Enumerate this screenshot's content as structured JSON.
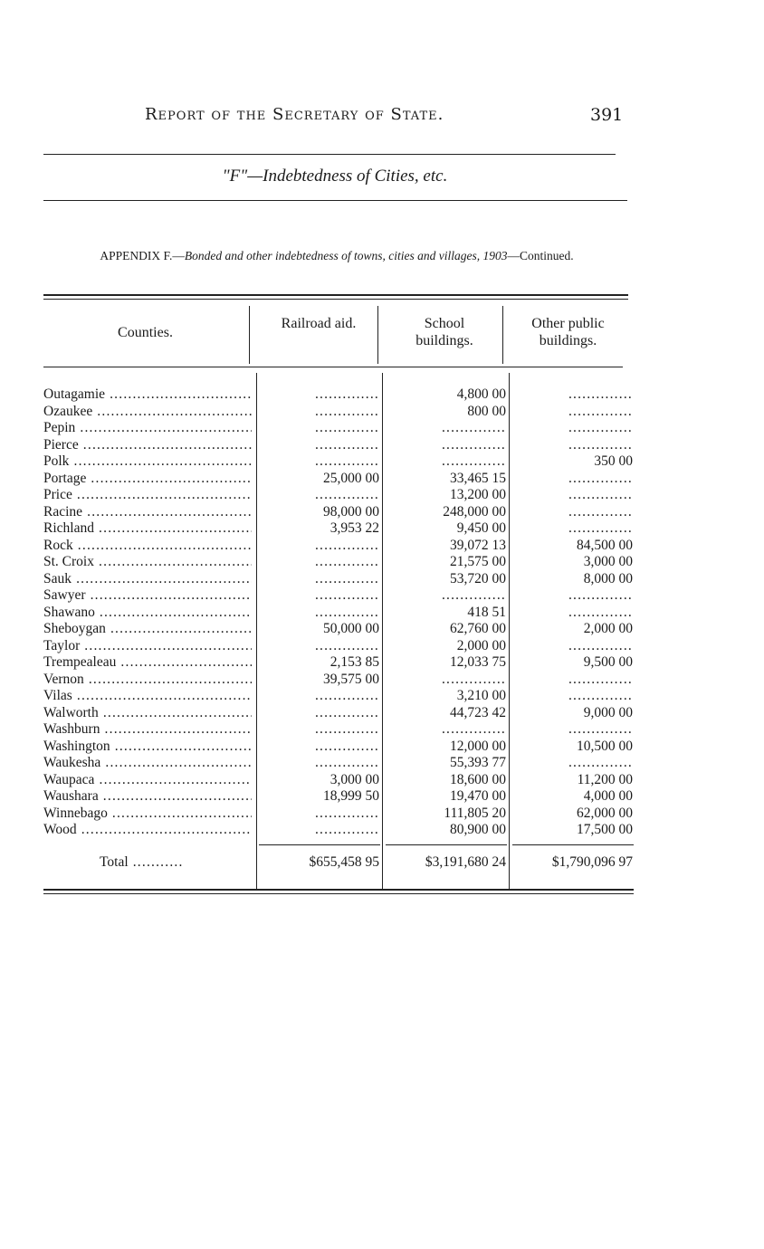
{
  "header": {
    "running_title": "Report of the Secretary of State.",
    "page_number": "391"
  },
  "subtitle": "\"F\"—Indebtedness of Cities, etc.",
  "caption": {
    "lead": "APPENDIX F.—",
    "italic": "Bonded and other indebtedness of towns, cities and villages, 1903",
    "tail": "—Continued."
  },
  "table": {
    "columns": [
      "Counties.",
      "Railroad aid.",
      "School buildings.",
      "Other public buildings."
    ],
    "rows": [
      [
        "Outagamie",
        "",
        "4,800 00",
        ""
      ],
      [
        "Ozaukee",
        "",
        "800 00",
        ""
      ],
      [
        "Pepin",
        "",
        "",
        ""
      ],
      [
        "Pierce",
        "",
        "",
        ""
      ],
      [
        "Polk",
        "",
        "",
        "350 00"
      ],
      [
        "Portage",
        "25,000 00",
        "33,465 15",
        ""
      ],
      [
        "Price",
        "",
        "13,200 00",
        ""
      ],
      [
        "Racine",
        "98,000 00",
        "248,000 00",
        ""
      ],
      [
        "Richland",
        "3,953 22",
        "9,450 00",
        ""
      ],
      [
        "Rock",
        "",
        "39,072 13",
        "84,500 00"
      ],
      [
        "St. Croix",
        "",
        "21,575 00",
        "3,000 00"
      ],
      [
        "Sauk",
        "",
        "53,720 00",
        "8,000 00"
      ],
      [
        "Sawyer",
        "",
        "",
        ""
      ],
      [
        "Shawano",
        "",
        "418 51",
        ""
      ],
      [
        "Sheboygan",
        "50,000 00",
        "62,760 00",
        "2,000 00"
      ],
      [
        "Taylor",
        "",
        "2,000 00",
        ""
      ],
      [
        "Trempealeau",
        "2,153 85",
        "12,033 75",
        "9,500 00"
      ],
      [
        "Vernon",
        "39,575 00",
        "",
        ""
      ],
      [
        "Vilas",
        "",
        "3,210 00",
        ""
      ],
      [
        "Walworth",
        "",
        "44,723 42",
        "9,000 00"
      ],
      [
        "Washburn",
        "",
        "",
        ""
      ],
      [
        "Washington",
        "",
        "12,000 00",
        "10,500 00"
      ],
      [
        "Waukesha",
        "",
        "55,393 77",
        ""
      ],
      [
        "Waupaca",
        "3,000 00",
        "18,600 00",
        "11,200 00"
      ],
      [
        "Waushara",
        "18,999 50",
        "19,470 00",
        "4,000 00"
      ],
      [
        "Winnebago",
        "",
        "111,805 20",
        "62,000 00"
      ],
      [
        "Wood",
        "",
        "80,900 00",
        "17,500 00"
      ]
    ],
    "total": [
      "Total",
      "$655,458 95",
      "$3,191,680 24",
      "$1,790,096 97"
    ]
  }
}
